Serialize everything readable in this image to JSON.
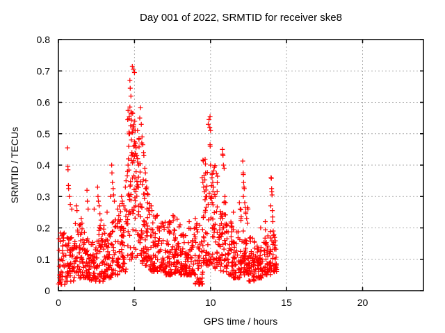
{
  "chart_data": {
    "type": "scatter",
    "title": "Day 001 of 2022, SRMTID for receiver ske8",
    "xlabel": "GPS time / hours",
    "ylabel": "SRMTID / TECUs",
    "xlim": [
      0,
      24
    ],
    "ylim": [
      0,
      0.8
    ],
    "x_ticks": {
      "values": [
        0,
        5,
        10,
        15,
        20
      ],
      "labels": [
        "0",
        "5",
        "10",
        "15",
        "20"
      ]
    },
    "y_ticks": {
      "values": [
        0,
        0.1,
        0.2,
        0.3,
        0.4,
        0.5,
        0.6,
        0.7,
        0.8
      ],
      "labels": [
        "0",
        "0.1",
        "0.2",
        "0.3",
        "0.4",
        "0.5",
        "0.6",
        "0.7",
        "0.8"
      ]
    },
    "grid": true,
    "legend": "none",
    "marker": "plus",
    "marker_color": "#ff0000",
    "grid_color": "#aaaaaa",
    "axis_color": "#000000",
    "data_time_span_hours": [
      0,
      14.35
    ],
    "notable_points": [
      [
        0.6,
        0.455
      ],
      [
        0.62,
        0.395
      ],
      [
        0.63,
        0.385
      ],
      [
        0.66,
        0.335
      ],
      [
        0.67,
        0.325
      ],
      [
        0.72,
        0.3
      ],
      [
        0.78,
        0.275
      ],
      [
        0.88,
        0.26
      ],
      [
        1.18,
        0.27
      ],
      [
        1.22,
        0.255
      ],
      [
        1.5,
        0.23
      ],
      [
        1.55,
        0.215
      ],
      [
        1.88,
        0.32
      ],
      [
        1.9,
        0.285
      ],
      [
        1.95,
        0.26
      ],
      [
        2.35,
        0.26
      ],
      [
        2.58,
        0.33
      ],
      [
        2.6,
        0.3
      ],
      [
        2.63,
        0.285
      ],
      [
        2.68,
        0.27
      ],
      [
        2.73,
        0.245
      ],
      [
        2.8,
        0.225
      ],
      [
        3.2,
        0.25
      ],
      [
        3.42,
        0.3
      ],
      [
        3.5,
        0.4
      ],
      [
        3.52,
        0.375
      ],
      [
        3.55,
        0.345
      ],
      [
        3.6,
        0.325
      ],
      [
        3.63,
        0.305
      ],
      [
        3.68,
        0.285
      ],
      [
        3.9,
        0.26
      ],
      [
        4.15,
        0.3
      ],
      [
        4.2,
        0.285
      ],
      [
        4.3,
        0.27
      ],
      [
        4.4,
        0.33
      ],
      [
        4.45,
        0.35
      ],
      [
        4.55,
        0.38
      ],
      [
        4.58,
        0.4
      ],
      [
        4.6,
        0.42
      ],
      [
        4.62,
        0.46
      ],
      [
        4.64,
        0.548
      ],
      [
        4.66,
        0.555
      ],
      [
        4.68,
        0.5
      ],
      [
        4.7,
        0.67
      ],
      [
        4.7,
        0.585
      ],
      [
        4.72,
        0.645
      ],
      [
        4.75,
        0.525
      ],
      [
        4.77,
        0.62
      ],
      [
        4.8,
        0.48
      ],
      [
        4.83,
        0.44
      ],
      [
        4.86,
        0.715
      ],
      [
        4.88,
        0.565
      ],
      [
        4.9,
        0.515
      ],
      [
        4.93,
        0.705
      ],
      [
        4.95,
        0.46
      ],
      [
        4.95,
        0.415
      ],
      [
        5.0,
        0.695
      ],
      [
        5.02,
        0.54
      ],
      [
        5.05,
        0.51
      ],
      [
        5.08,
        0.47
      ],
      [
        5.1,
        0.455
      ],
      [
        5.15,
        0.43
      ],
      [
        5.2,
        0.41
      ],
      [
        5.28,
        0.4
      ],
      [
        5.3,
        0.485
      ],
      [
        5.35,
        0.55
      ],
      [
        5.4,
        0.583
      ],
      [
        5.45,
        0.53
      ],
      [
        5.5,
        0.49
      ],
      [
        5.55,
        0.465
      ],
      [
        5.6,
        0.44
      ],
      [
        5.62,
        0.43
      ],
      [
        5.68,
        0.39
      ],
      [
        5.72,
        0.375
      ],
      [
        5.75,
        0.35
      ],
      [
        5.8,
        0.33
      ],
      [
        5.85,
        0.31
      ],
      [
        6.1,
        0.27
      ],
      [
        6.15,
        0.255
      ],
      [
        6.5,
        0.24
      ],
      [
        7.3,
        0.22
      ],
      [
        7.6,
        0.235
      ],
      [
        8.0,
        0.21
      ],
      [
        8.6,
        0.22
      ],
      [
        9.0,
        0.23
      ],
      [
        9.45,
        0.36
      ],
      [
        9.5,
        0.345
      ],
      [
        9.55,
        0.33
      ],
      [
        9.6,
        0.315
      ],
      [
        9.75,
        0.3
      ],
      [
        9.85,
        0.53
      ],
      [
        9.9,
        0.545
      ],
      [
        9.95,
        0.52
      ],
      [
        9.97,
        0.555
      ],
      [
        9.97,
        0.465
      ],
      [
        9.98,
        0.46
      ],
      [
        10.0,
        0.51
      ],
      [
        10.0,
        0.4
      ],
      [
        10.05,
        0.3
      ],
      [
        10.1,
        0.36
      ],
      [
        10.15,
        0.345
      ],
      [
        10.2,
        0.33
      ],
      [
        10.3,
        0.3
      ],
      [
        10.78,
        0.45
      ],
      [
        10.8,
        0.435
      ],
      [
        10.82,
        0.43
      ],
      [
        10.85,
        0.4
      ],
      [
        10.9,
        0.39
      ],
      [
        10.95,
        0.3
      ],
      [
        11.0,
        0.28
      ],
      [
        11.5,
        0.25
      ],
      [
        11.9,
        0.28
      ],
      [
        11.95,
        0.26
      ],
      [
        12.12,
        0.413
      ],
      [
        12.15,
        0.375
      ],
      [
        12.16,
        0.37
      ],
      [
        12.18,
        0.345
      ],
      [
        12.2,
        0.33
      ],
      [
        12.22,
        0.325
      ],
      [
        12.16,
        0.3
      ],
      [
        12.25,
        0.28
      ],
      [
        12.28,
        0.265
      ],
      [
        12.32,
        0.25
      ],
      [
        12.38,
        0.23
      ],
      [
        12.42,
        0.215
      ],
      [
        13.3,
        0.2
      ],
      [
        13.6,
        0.22
      ],
      [
        13.96,
        0.27
      ],
      [
        13.98,
        0.36
      ],
      [
        14.0,
        0.358
      ],
      [
        14.02,
        0.325
      ],
      [
        14.03,
        0.315
      ],
      [
        14.05,
        0.305
      ],
      [
        14.06,
        0.255
      ],
      [
        14.08,
        0.235
      ],
      [
        14.1,
        0.22
      ],
      [
        14.12,
        0.19
      ],
      [
        14.15,
        0.175
      ]
    ],
    "scatter_distribution": {
      "column_format": [
        "t_start_hours",
        "t_end_hours",
        "point_count",
        "y_min",
        "y_max",
        "skew_exponent"
      ],
      "bins": [
        [
          0.0,
          0.5,
          46,
          0.02,
          0.19,
          1.7
        ],
        [
          0.5,
          1.0,
          46,
          0.03,
          0.17,
          1.7
        ],
        [
          1.0,
          1.5,
          46,
          0.04,
          0.22,
          1.7
        ],
        [
          1.5,
          2.0,
          46,
          0.04,
          0.2,
          1.7
        ],
        [
          2.0,
          2.5,
          46,
          0.03,
          0.16,
          1.7
        ],
        [
          2.5,
          3.0,
          46,
          0.03,
          0.22,
          1.7
        ],
        [
          3.0,
          3.5,
          46,
          0.04,
          0.19,
          1.7
        ],
        [
          3.5,
          4.0,
          46,
          0.05,
          0.24,
          1.7
        ],
        [
          4.0,
          4.5,
          46,
          0.06,
          0.28,
          1.6
        ],
        [
          4.5,
          5.0,
          52,
          0.1,
          0.58,
          1.4
        ],
        [
          5.0,
          5.5,
          52,
          0.1,
          0.52,
          1.4
        ],
        [
          5.5,
          6.0,
          50,
          0.08,
          0.36,
          1.5
        ],
        [
          6.0,
          6.5,
          46,
          0.06,
          0.26,
          1.7
        ],
        [
          6.5,
          7.0,
          46,
          0.06,
          0.22,
          1.7
        ],
        [
          7.0,
          7.5,
          46,
          0.05,
          0.22,
          1.7
        ],
        [
          7.5,
          8.0,
          46,
          0.05,
          0.24,
          1.7
        ],
        [
          8.0,
          8.5,
          46,
          0.05,
          0.18,
          1.7
        ],
        [
          8.5,
          9.0,
          46,
          0.05,
          0.2,
          1.7
        ],
        [
          9.0,
          9.5,
          46,
          0.02,
          0.24,
          1.7
        ],
        [
          9.5,
          10.0,
          50,
          0.08,
          0.42,
          1.5
        ],
        [
          10.0,
          10.5,
          50,
          0.07,
          0.4,
          1.5
        ],
        [
          10.5,
          11.0,
          48,
          0.06,
          0.3,
          1.6
        ],
        [
          11.0,
          11.5,
          46,
          0.05,
          0.22,
          1.7
        ],
        [
          11.5,
          12.0,
          46,
          0.04,
          0.2,
          1.7
        ],
        [
          12.0,
          12.5,
          48,
          0.05,
          0.28,
          1.6
        ],
        [
          12.5,
          13.0,
          46,
          0.03,
          0.17,
          1.7
        ],
        [
          13.0,
          13.5,
          46,
          0.04,
          0.16,
          1.7
        ],
        [
          13.5,
          14.0,
          46,
          0.05,
          0.2,
          1.7
        ],
        [
          14.0,
          14.35,
          30,
          0.06,
          0.18,
          1.7
        ]
      ],
      "prng_seed": 7
    }
  }
}
